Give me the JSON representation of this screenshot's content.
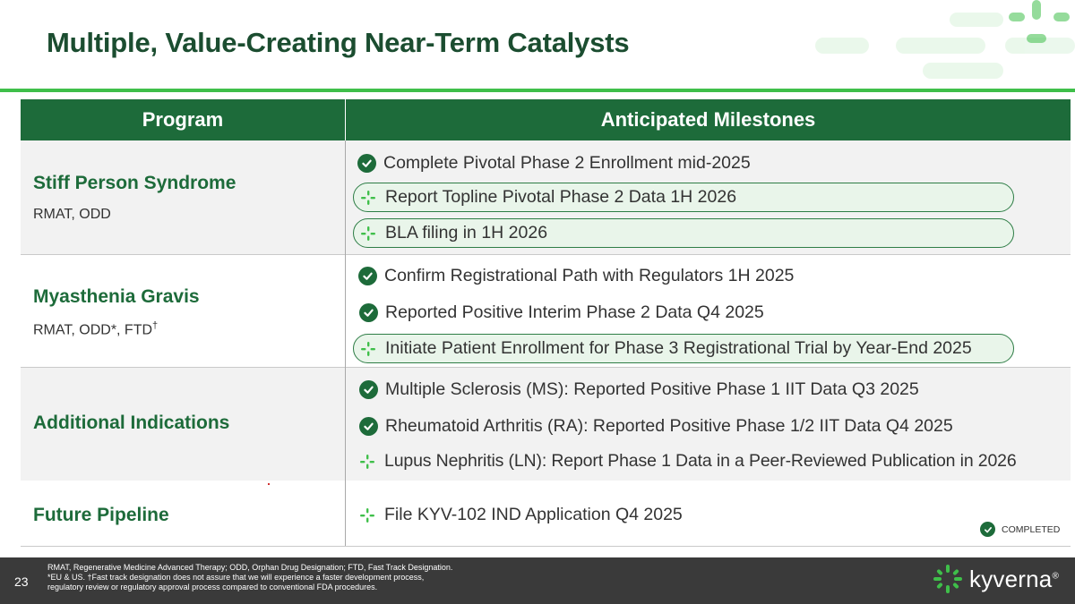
{
  "slide": {
    "title": "Multiple, Value-Creating Near-Term Catalysts",
    "page_number": "23"
  },
  "colors": {
    "brand_dark_green": "#1d6b3a",
    "accent_green": "#3fbf4a",
    "pill_fill": "#e9f5ea",
    "footer_bg": "#3a3a3a"
  },
  "table": {
    "headers": {
      "program": "Program",
      "milestones": "Anticipated Milestones"
    },
    "rows": [
      {
        "program": "Stiff Person Syndrome",
        "designations": "RMAT, ODD",
        "milestones": [
          {
            "text": "Complete Pivotal Phase 2 Enrollment mid-2025",
            "status": "completed",
            "highlight": false
          },
          {
            "text": "Report Topline Pivotal Phase 2 Data 1H 2026",
            "status": "upcoming",
            "highlight": true
          },
          {
            "text": "BLA filing in 1H 2026",
            "status": "upcoming",
            "highlight": true
          }
        ]
      },
      {
        "program": "Myasthenia Gravis",
        "designations": "RMAT, ODD*,  FTD",
        "designations_sup": "†",
        "milestones": [
          {
            "text": "Confirm Registrational Path with Regulators 1H 2025",
            "status": "completed",
            "highlight": false
          },
          {
            "text": "Reported Positive Interim Phase 2 Data Q4 2025",
            "status": "completed",
            "highlight": false
          },
          {
            "text": "Initiate Patient Enrollment for Phase 3 Registrational Trial by Year-End 2025",
            "status": "upcoming",
            "highlight": true
          }
        ]
      },
      {
        "program": "Additional Indications",
        "milestones": [
          {
            "text": "Multiple Sclerosis (MS): Reported Positive Phase 1 IIT Data Q3 2025",
            "status": "completed",
            "highlight": false
          },
          {
            "text": "Rheumatoid Arthritis (RA): Reported Positive Phase 1/2 IIT Data Q4 2025",
            "status": "completed",
            "highlight": false
          },
          {
            "text": "Lupus Nephritis (LN):  Report Phase 1 Data in a Peer-Reviewed Publication in 2026",
            "status": "upcoming",
            "highlight": false
          }
        ]
      },
      {
        "program": "Future Pipeline",
        "milestones": [
          {
            "text": "File KYV-102 IND Application Q4 2025",
            "status": "upcoming",
            "highlight": false
          }
        ]
      }
    ]
  },
  "legend": {
    "label": "COMPLETED",
    "icon": "check-circle-icon"
  },
  "footer": {
    "footnote_line1": "RMAT, Regenerative Medicine Advanced Therapy; ODD, Orphan Drug Designation; FTD, Fast Track Designation.",
    "footnote_line2": "*EU & US. †Fast track designation does not assure that we will experience a faster development process,",
    "footnote_line3": "regulatory review or regulatory approval process compared to conventional FDA procedures.",
    "logo_text": "kyverna",
    "logo_mark": "®"
  },
  "icons": {
    "completed": "check-circle-icon",
    "upcoming": "sparkle-cross-icon"
  }
}
